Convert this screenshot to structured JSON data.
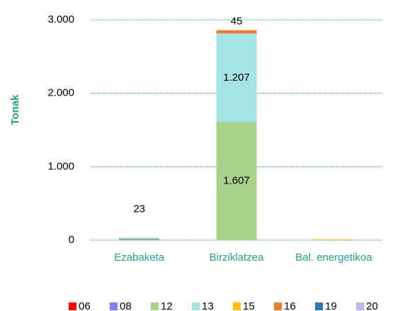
{
  "chart_data": {
    "type": "stacked_bar",
    "y_label": "Tonak",
    "categories": [
      "Ezabaketa",
      "Birziklatzea",
      "Bal. energetikoa"
    ],
    "series": [
      {
        "name": "06",
        "color": "#ff0000",
        "values": [
          0,
          0,
          0
        ]
      },
      {
        "name": "08",
        "color": "#7f7fef",
        "values": [
          10,
          0,
          0
        ]
      },
      {
        "name": "12",
        "color": "#a9d18e",
        "values": [
          23,
          1607,
          0
        ],
        "value_labels": [
          "23",
          "1.607",
          null
        ]
      },
      {
        "name": "13",
        "color": "#a6e3e3",
        "values": [
          0,
          1207,
          0
        ],
        "value_labels": [
          null,
          "1.207",
          null
        ]
      },
      {
        "name": "15",
        "color": "#ffc000",
        "values": [
          0,
          0,
          10
        ]
      },
      {
        "name": "16",
        "color": "#ed7d31",
        "values": [
          0,
          45,
          0
        ],
        "value_labels": [
          null,
          "45",
          null
        ]
      },
      {
        "name": "19",
        "color": "#2e75b6",
        "values": [
          0,
          0,
          0
        ]
      },
      {
        "name": "20",
        "color": "#b8b8f2",
        "values": [
          0,
          0,
          0
        ]
      }
    ],
    "ylim": [
      0,
      3000
    ],
    "yticks": [
      0,
      {
        "value": 1000,
        "label": "1.000"
      },
      {
        "value": 2000,
        "label": "2.000"
      },
      {
        "value": 3000,
        "label": "3.000"
      }
    ],
    "grid": true
  }
}
